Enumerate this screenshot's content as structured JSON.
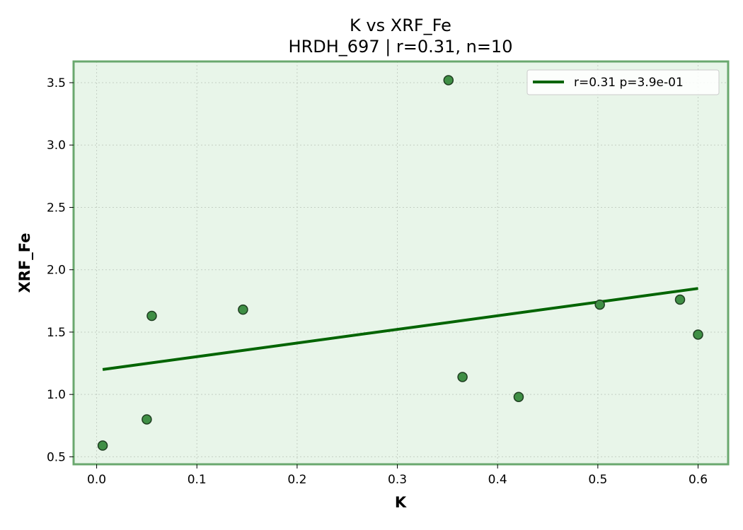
{
  "chart_data": {
    "type": "scatter",
    "title": "K vs XRF_Fe",
    "subtitle": "HRDH_697 | r=0.31, n=10",
    "xlabel": "K",
    "ylabel": "XRF_Fe",
    "xlim": [
      -0.023,
      0.63
    ],
    "ylim": [
      0.44,
      3.67
    ],
    "xticks": [
      0.0,
      0.1,
      0.2,
      0.3,
      0.4,
      0.5,
      0.6
    ],
    "xtick_labels": [
      "0.0",
      "0.1",
      "0.2",
      "0.3",
      "0.4",
      "0.5",
      "0.6"
    ],
    "yticks": [
      0.5,
      1.0,
      1.5,
      2.0,
      2.5,
      3.0,
      3.5
    ],
    "ytick_labels": [
      "0.5",
      "1.0",
      "1.5",
      "2.0",
      "2.5",
      "3.0",
      "3.5"
    ],
    "grid": true,
    "legend_position": "top-right",
    "points": [
      {
        "x": 0.006,
        "y": 0.59
      },
      {
        "x": 0.05,
        "y": 0.8
      },
      {
        "x": 0.055,
        "y": 1.63
      },
      {
        "x": 0.146,
        "y": 1.68
      },
      {
        "x": 0.351,
        "y": 3.52
      },
      {
        "x": 0.365,
        "y": 1.14
      },
      {
        "x": 0.421,
        "y": 0.98
      },
      {
        "x": 0.502,
        "y": 1.72
      },
      {
        "x": 0.582,
        "y": 1.76
      },
      {
        "x": 0.6,
        "y": 1.48
      }
    ],
    "fit_line": {
      "label": "r=0.31  p=3.9e-01",
      "x": [
        0.006,
        0.6
      ],
      "y": [
        1.2,
        1.85
      ]
    },
    "colors": {
      "background": "#e8f5e9",
      "frame": "#6aa86e",
      "point_fill": "#3f8f45",
      "point_edge": "#1e3d20",
      "fit_line": "#006400",
      "grid": "#c4cfc4"
    }
  }
}
